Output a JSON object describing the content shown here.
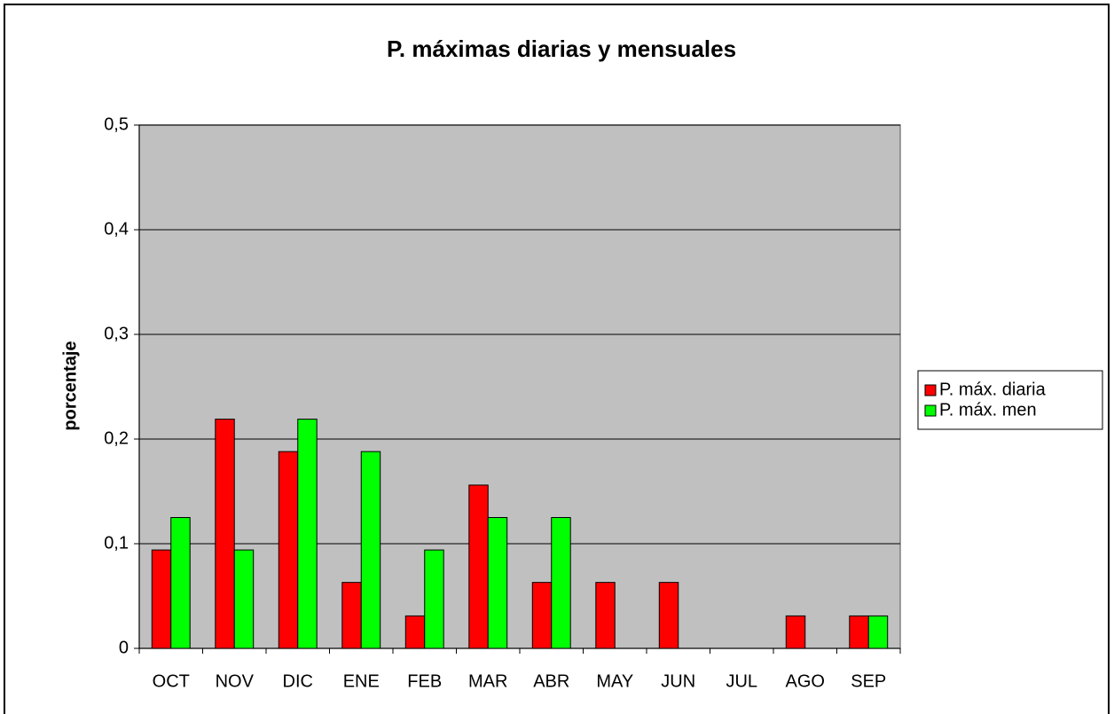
{
  "chart_data": {
    "type": "bar",
    "title": "P. máximas diarias y mensuales",
    "y_label": "porcentaje",
    "categories": [
      "OCT",
      "NOV",
      "DIC",
      "ENE",
      "FEB",
      "MAR",
      "ABR",
      "MAY",
      "JUN",
      "JUL",
      "AGO",
      "SEP"
    ],
    "series": [
      {
        "name": "P. máx. diaria",
        "color": "#ff0000",
        "values": [
          0.094,
          0.219,
          0.188,
          0.063,
          0.031,
          0.156,
          0.063,
          0.063,
          0.063,
          0,
          0.031,
          0.031
        ]
      },
      {
        "name": "P. máx. men",
        "color": "#00ff00",
        "values": [
          0.125,
          0.094,
          0.219,
          0.188,
          0.094,
          0.125,
          0.125,
          0,
          0,
          0,
          0,
          0.031
        ]
      }
    ],
    "ylim": [
      0,
      0.5
    ],
    "yticks": [
      0,
      {
        "value": 0.1,
        "label": "0,1"
      },
      {
        "value": 0.2,
        "label": "0,2"
      },
      {
        "value": 0.3,
        "label": "0,3"
      },
      {
        "value": 0.4,
        "label": "0,4"
      },
      {
        "value": 0.5,
        "label": "0,5"
      }
    ],
    "grid": true,
    "legend": "right"
  }
}
